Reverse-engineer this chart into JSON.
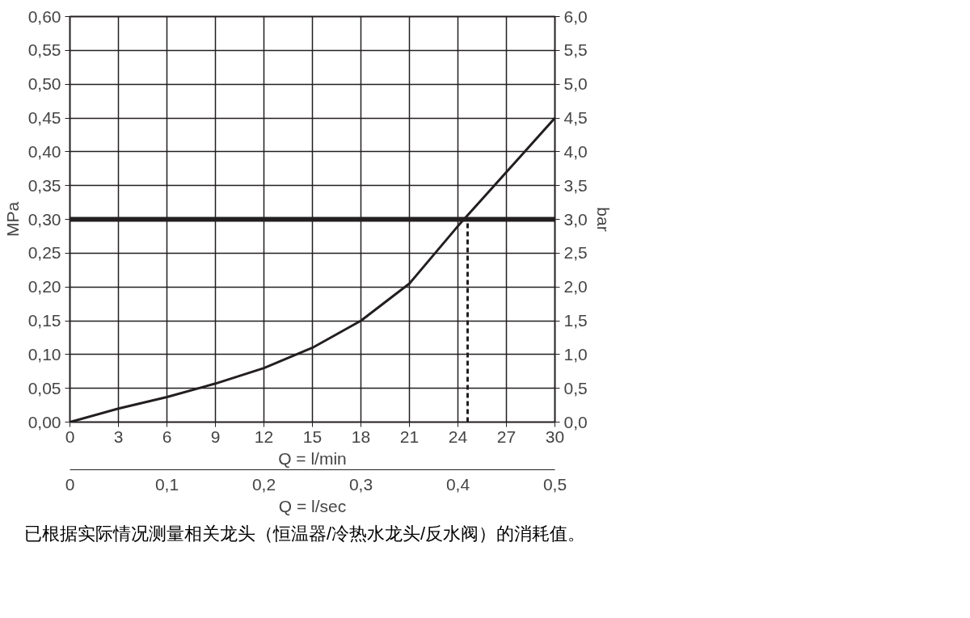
{
  "chart_data": {
    "type": "line",
    "xlabel": "Q = l/min",
    "x2label": "Q = l/sec",
    "ylabel": "MPa",
    "y2label": "bar",
    "xlim": [
      0,
      30
    ],
    "xticks": [
      0,
      3,
      6,
      9,
      12,
      15,
      18,
      21,
      24,
      27,
      30
    ],
    "x2lim": [
      0,
      0.5
    ],
    "x2ticks": [
      0,
      {
        "value": 0.1,
        "label": "0,1"
      },
      {
        "value": 0.2,
        "label": "0,2"
      },
      {
        "value": 0.3,
        "label": "0,3"
      },
      {
        "value": 0.4,
        "label": "0,4"
      },
      {
        "value": 0.5,
        "label": "0,5"
      }
    ],
    "ylim": [
      0,
      0.6
    ],
    "yticks": [
      {
        "value": 0,
        "label": "0,00"
      },
      {
        "value": 0.05,
        "label": "0,05"
      },
      {
        "value": 0.1,
        "label": "0,10"
      },
      {
        "value": 0.15,
        "label": "0,15"
      },
      {
        "value": 0.2,
        "label": "0,20"
      },
      {
        "value": 0.25,
        "label": "0,25"
      },
      {
        "value": 0.3,
        "label": "0,30"
      },
      {
        "value": 0.35,
        "label": "0,35"
      },
      {
        "value": 0.4,
        "label": "0,40"
      },
      {
        "value": 0.45,
        "label": "0,45"
      },
      {
        "value": 0.5,
        "label": "0,50"
      },
      {
        "value": 0.55,
        "label": "0,55"
      },
      {
        "value": 0.6,
        "label": "0,60"
      }
    ],
    "y2lim": [
      0,
      6
    ],
    "y2ticks": [
      {
        "value": 0,
        "label": "0,0"
      },
      {
        "value": 0.5,
        "label": "0,5"
      },
      {
        "value": 1,
        "label": "1,0"
      },
      {
        "value": 1.5,
        "label": "1,5"
      },
      {
        "value": 2,
        "label": "2,0"
      },
      {
        "value": 2.5,
        "label": "2,5"
      },
      {
        "value": 3,
        "label": "3,0"
      },
      {
        "value": 3.5,
        "label": "3,5"
      },
      {
        "value": 4,
        "label": "4,0"
      },
      {
        "value": 4.5,
        "label": "4,5"
      },
      {
        "value": 5,
        "label": "5,0"
      },
      {
        "value": 5.5,
        "label": "5,5"
      },
      {
        "value": 6,
        "label": "6,0"
      }
    ],
    "grid": true,
    "series": [
      {
        "color": "#231f20",
        "x": [
          0,
          3,
          6,
          9,
          12,
          15,
          18,
          21,
          24,
          27,
          30
        ],
        "values": [
          0,
          0.02,
          0.037,
          0.057,
          0.08,
          0.11,
          0.15,
          0.205,
          0.29,
          0.37,
          0.45
        ]
      },
      {
        "color": "#231f20",
        "line_style": "dashed",
        "x": [
          24.6,
          24.6
        ],
        "values": [
          0,
          0.3
        ]
      }
    ],
    "ref_lines": [
      {
        "axis": "y",
        "value": 0.3,
        "color": "#231f20"
      }
    ],
    "annotations": [
      "已根据实际情况测量相关龙头（恒温器/冷热水龙头/反水阀）的消耗值。"
    ]
  }
}
